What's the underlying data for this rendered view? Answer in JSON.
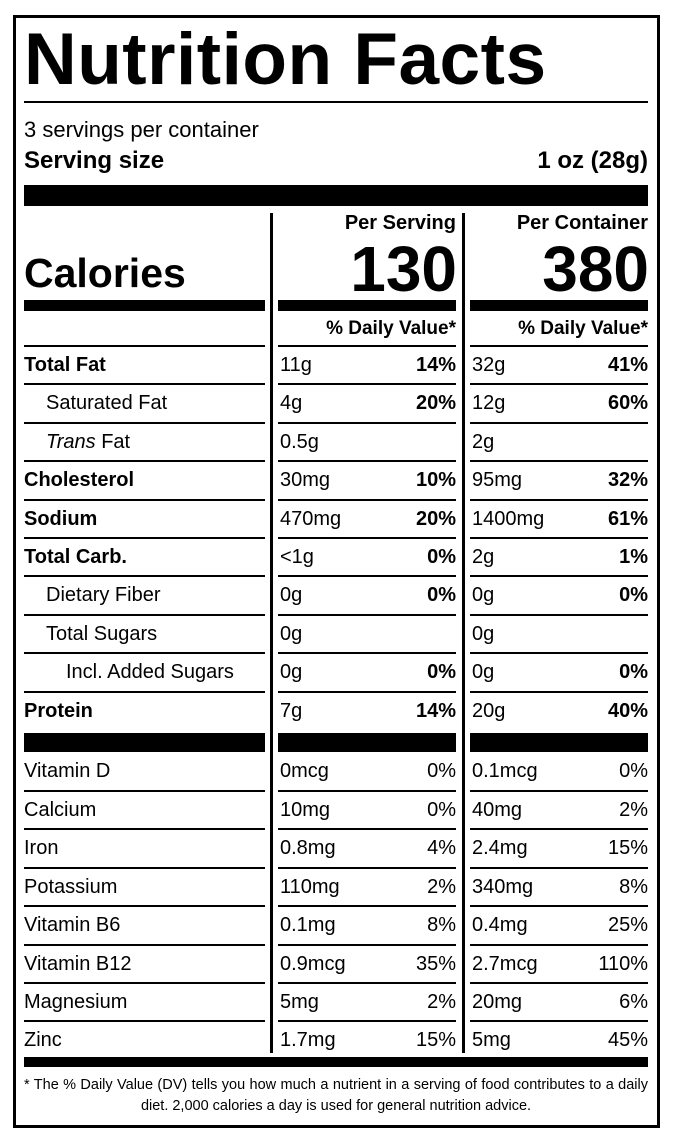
{
  "title": "Nutrition Facts",
  "servings_per_container": "3 servings per container",
  "serving_size_label": "Serving size",
  "serving_size_value": "1 oz (28g)",
  "calories_label": "Calories",
  "per_serving_label": "Per Serving",
  "per_container_label": "Per Container",
  "calories_per_serving": "130",
  "calories_per_container": "380",
  "daily_value_header": "% Daily Value*",
  "nutrients": [
    {
      "name": "Total Fat",
      "bold": true,
      "indent": 0,
      "serving_amount": "11g",
      "serving_dv": "14%",
      "container_amount": "32g",
      "container_dv": "41%"
    },
    {
      "name": "Saturated Fat",
      "bold": false,
      "indent": 1,
      "serving_amount": "4g",
      "serving_dv": "20%",
      "container_amount": "12g",
      "container_dv": "60%"
    },
    {
      "name_italic": "Trans",
      "name": " Fat",
      "bold": false,
      "indent": 1,
      "serving_amount": "0.5g",
      "serving_dv": "",
      "container_amount": "2g",
      "container_dv": ""
    },
    {
      "name": "Cholesterol",
      "bold": true,
      "indent": 0,
      "serving_amount": "30mg",
      "serving_dv": "10%",
      "container_amount": "95mg",
      "container_dv": "32%"
    },
    {
      "name": "Sodium",
      "bold": true,
      "indent": 0,
      "serving_amount": "470mg",
      "serving_dv": "20%",
      "container_amount": "1400mg",
      "container_dv": "61%"
    },
    {
      "name": "Total Carb.",
      "bold": true,
      "indent": 0,
      "serving_amount": "<1g",
      "serving_dv": "0%",
      "container_amount": "2g",
      "container_dv": "1%"
    },
    {
      "name": "Dietary Fiber",
      "bold": false,
      "indent": 1,
      "serving_amount": "0g",
      "serving_dv": "0%",
      "container_amount": "0g",
      "container_dv": "0%"
    },
    {
      "name": "Total Sugars",
      "bold": false,
      "indent": 1,
      "serving_amount": "0g",
      "serving_dv": "",
      "container_amount": "0g",
      "container_dv": ""
    },
    {
      "name": "Incl. Added Sugars",
      "bold": false,
      "indent": 2,
      "serving_amount": "0g",
      "serving_dv": "0%",
      "container_amount": "0g",
      "container_dv": "0%"
    },
    {
      "name": "Protein",
      "bold": true,
      "indent": 0,
      "serving_amount": "7g",
      "serving_dv": "14%",
      "container_amount": "20g",
      "container_dv": "40%"
    }
  ],
  "vitamins": [
    {
      "name": "Vitamin D",
      "serving_amount": "0mcg",
      "serving_dv": "0%",
      "container_amount": "0.1mcg",
      "container_dv": "0%"
    },
    {
      "name": "Calcium",
      "serving_amount": "10mg",
      "serving_dv": "0%",
      "container_amount": "40mg",
      "container_dv": "2%"
    },
    {
      "name": "Iron",
      "serving_amount": "0.8mg",
      "serving_dv": "4%",
      "container_amount": "2.4mg",
      "container_dv": "15%"
    },
    {
      "name": "Potassium",
      "serving_amount": "110mg",
      "serving_dv": "2%",
      "container_amount": "340mg",
      "container_dv": "8%"
    },
    {
      "name": "Vitamin B6",
      "serving_amount": "0.1mg",
      "serving_dv": "8%",
      "container_amount": "0.4mg",
      "container_dv": "25%"
    },
    {
      "name": "Vitamin B12",
      "serving_amount": "0.9mcg",
      "serving_dv": "35%",
      "container_amount": "2.7mcg",
      "container_dv": "110%"
    },
    {
      "name": "Magnesium",
      "serving_amount": "5mg",
      "serving_dv": "2%",
      "container_amount": "20mg",
      "container_dv": "6%"
    },
    {
      "name": "Zinc",
      "serving_amount": "1.7mg",
      "serving_dv": "15%",
      "container_amount": "5mg",
      "container_dv": "45%"
    }
  ],
  "footnote": "* The % Daily Value (DV) tells you how much a nutrient in a serving of food contributes to a daily diet. 2,000 calories a day is used for general nutrition advice."
}
